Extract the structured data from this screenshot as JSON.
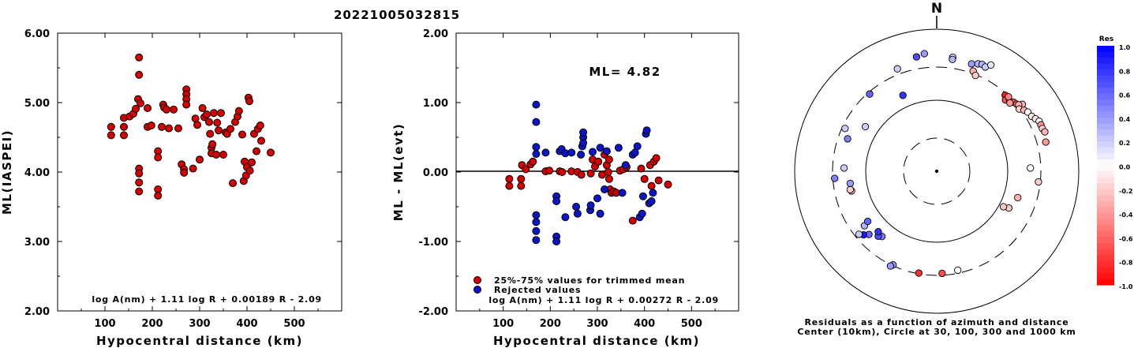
{
  "event_id": "20221005032815",
  "colors": {
    "accepted": "#d40000",
    "rejected": "#0a14c8"
  },
  "chart_data": [
    {
      "type": "scatter",
      "xlabel": "Hypocentral distance (km)",
      "ylabel": "ML(IASPEI)",
      "xlim": [
        0,
        600
      ],
      "ylim": [
        2.0,
        6.0
      ],
      "xticks": [
        "100",
        "200",
        "300",
        "400",
        "500"
      ],
      "yticks": [
        "2.00",
        "3.00",
        "4.00",
        "5.00",
        "6.00"
      ],
      "formula": "log A(nm) + 1.11 log R + 0.00189 R - 2.09",
      "points": [
        [
          113,
          4.65
        ],
        [
          113,
          4.53
        ],
        [
          140,
          4.78
        ],
        [
          140,
          4.65
        ],
        [
          140,
          4.53
        ],
        [
          152,
          4.8
        ],
        [
          160,
          4.84
        ],
        [
          165,
          4.91
        ],
        [
          170,
          5.05
        ],
        [
          172,
          5.65
        ],
        [
          172,
          5.4
        ],
        [
          175,
          4.99
        ],
        [
          172,
          4.05
        ],
        [
          172,
          3.98
        ],
        [
          172,
          3.85
        ],
        [
          172,
          3.72
        ],
        [
          190,
          4.92
        ],
        [
          190,
          4.65
        ],
        [
          198,
          4.67
        ],
        [
          212,
          4.3
        ],
        [
          212,
          4.21
        ],
        [
          212,
          3.75
        ],
        [
          212,
          3.66
        ],
        [
          220,
          4.65
        ],
        [
          223,
          4.97
        ],
        [
          225,
          4.93
        ],
        [
          230,
          4.9
        ],
        [
          235,
          4.63
        ],
        [
          245,
          4.9
        ],
        [
          255,
          4.63
        ],
        [
          262,
          4.11
        ],
        [
          267,
          4.04
        ],
        [
          267,
          3.99
        ],
        [
          272,
          5.19
        ],
        [
          272,
          5.12
        ],
        [
          272,
          5.05
        ],
        [
          272,
          4.97
        ],
        [
          286,
          4.05
        ],
        [
          291,
          4.77
        ],
        [
          295,
          4.68
        ],
        [
          300,
          4.18
        ],
        [
          306,
          4.92
        ],
        [
          310,
          4.79
        ],
        [
          315,
          4.83
        ],
        [
          320,
          4.72
        ],
        [
          322,
          4.55
        ],
        [
          325,
          4.35
        ],
        [
          325,
          4.27
        ],
        [
          327,
          4.4
        ],
        [
          330,
          4.85
        ],
        [
          335,
          4.25
        ],
        [
          337,
          4.71
        ],
        [
          340,
          4.6
        ],
        [
          345,
          4.85
        ],
        [
          350,
          4.25
        ],
        [
          355,
          4.57
        ],
        [
          358,
          4.55
        ],
        [
          365,
          4.62
        ],
        [
          370,
          3.84
        ],
        [
          375,
          4.72
        ],
        [
          380,
          4.8
        ],
        [
          383,
          4.88
        ],
        [
          390,
          4.54
        ],
        [
          395,
          4.15
        ],
        [
          393,
          3.87
        ],
        [
          398,
          3.95
        ],
        [
          400,
          4.07
        ],
        [
          403,
          5.07
        ],
        [
          405,
          5.02
        ],
        [
          406,
          4.02
        ],
        [
          410,
          4.14
        ],
        [
          415,
          4.55
        ],
        [
          420,
          4.3
        ],
        [
          423,
          4.62
        ],
        [
          428,
          4.67
        ],
        [
          430,
          4.45
        ],
        [
          450,
          4.28
        ]
      ]
    },
    {
      "type": "scatter",
      "xlabel": "Hypocentral distance (km)",
      "ylabel": "ML - ML(evt)",
      "xlim": [
        0,
        600
      ],
      "ylim": [
        -2.0,
        2.0
      ],
      "xticks": [
        "100",
        "200",
        "300",
        "400",
        "500"
      ],
      "yticks": [
        "-2.00",
        "-1.00",
        "0.00",
        "1.00",
        "2.00"
      ],
      "annotation": "ML= 4.82",
      "legend": [
        "25%-75% values for trimmed mean",
        "Rejected values"
      ],
      "formula": "log A(nm) + 1.11 log R + 0.00272 R - 2.09",
      "series": [
        {
          "name": "25%-75% values for trimmed mean",
          "points": [
            [
              113,
              -0.2
            ],
            [
              113,
              -0.1
            ],
            [
              138,
              -0.1
            ],
            [
              138,
              -0.2
            ],
            [
              140,
              0.1
            ],
            [
              148,
              0.04
            ],
            [
              158,
              0.11
            ],
            [
              163,
              0.15
            ],
            [
              190,
              0.01
            ],
            [
              198,
              0.02
            ],
            [
              220,
              0.01
            ],
            [
              225,
              0.0
            ],
            [
              245,
              0.01
            ],
            [
              258,
              0.0
            ],
            [
              266,
              -0.04
            ],
            [
              286,
              -0.02
            ],
            [
              290,
              0.18
            ],
            [
              295,
              0.08
            ],
            [
              302,
              0.15
            ],
            [
              310,
              -0.04
            ],
            [
              315,
              0.25
            ],
            [
              320,
              0.1
            ],
            [
              323,
              0.0
            ],
            [
              325,
              -0.1
            ],
            [
              325,
              0.18
            ],
            [
              327,
              -0.25
            ],
            [
              330,
              -0.3
            ],
            [
              335,
              -0.28
            ],
            [
              340,
              -0.3
            ],
            [
              348,
              0.02
            ],
            [
              355,
              0.04
            ],
            [
              362,
              0.07
            ],
            [
              375,
              -0.7
            ],
            [
              393,
              0.05
            ],
            [
              400,
              -0.1
            ],
            [
              412,
              0.1
            ],
            [
              415,
              -0.2
            ],
            [
              420,
              0.15
            ],
            [
              425,
              0.2
            ],
            [
              430,
              -0.12
            ],
            [
              450,
              -0.18
            ]
          ]
        },
        {
          "name": "Rejected values",
          "points": [
            [
              170,
              0.97
            ],
            [
              170,
              0.72
            ],
            [
              170,
              0.36
            ],
            [
              170,
              0.26
            ],
            [
              170,
              -0.62
            ],
            [
              170,
              -0.72
            ],
            [
              170,
              -0.85
            ],
            [
              170,
              -0.98
            ],
            [
              190,
              0.28
            ],
            [
              213,
              -0.35
            ],
            [
              213,
              -0.42
            ],
            [
              213,
              -0.93
            ],
            [
              213,
              -1.0
            ],
            [
              220,
              0.3
            ],
            [
              224,
              0.33
            ],
            [
              232,
              0.27
            ],
            [
              232,
              -0.65
            ],
            [
              245,
              0.28
            ],
            [
              255,
              -0.5
            ],
            [
              258,
              -0.6
            ],
            [
              265,
              0.25
            ],
            [
              268,
              0.37
            ],
            [
              270,
              0.5
            ],
            [
              270,
              0.42
            ],
            [
              270,
              0.57
            ],
            [
              285,
              -0.55
            ],
            [
              286,
              -0.48
            ],
            [
              290,
              0.29
            ],
            [
              300,
              -0.38
            ],
            [
              306,
              0.35
            ],
            [
              306,
              -0.6
            ],
            [
              315,
              -0.25
            ],
            [
              320,
              0.3
            ],
            [
              345,
              0.35
            ],
            [
              353,
              -0.3
            ],
            [
              360,
              0.1
            ],
            [
              375,
              0.25
            ],
            [
              380,
              0.28
            ],
            [
              385,
              0.37
            ],
            [
              390,
              -0.65
            ],
            [
              395,
              -0.6
            ],
            [
              397,
              -0.35
            ],
            [
              403,
              0.55
            ],
            [
              405,
              0.6
            ],
            [
              410,
              -0.45
            ],
            [
              415,
              -0.42
            ],
            [
              418,
              -0.3
            ]
          ]
        }
      ]
    },
    {
      "type": "polar-scatter",
      "north_label": "N",
      "caption_line1": "Residuals as a function of azimuth and distance",
      "caption_line2": "Center (10km), Circle at 30, 100, 300 and 1000 km",
      "colorbar_title": "Res",
      "colorbar_ticks": [
        "1.0",
        "0.8",
        "0.6",
        "0.4",
        "0.2",
        "0.0",
        "-0.2",
        "-0.4",
        "-0.6",
        "-0.8",
        "-1.0"
      ],
      "rings_km": [
        30,
        100,
        300,
        1000
      ],
      "points_az_dist_res": [
        [
          -6,
          1.11,
          0.4
        ],
        [
          8,
          1.08,
          0.1
        ],
        [
          8,
          1.06,
          0.3
        ],
        [
          18,
          1.06,
          0.4
        ],
        [
          21,
          1.08,
          0.3
        ],
        [
          23,
          1.09,
          0.3
        ],
        [
          25,
          1.08,
          0.2
        ],
        [
          27,
          1.12,
          0.1
        ],
        [
          20,
          1.0,
          -0.3
        ],
        [
          22,
          0.97,
          -0.2
        ],
        [
          42,
          0.96,
          -0.9
        ],
        [
          44,
          0.93,
          -0.7
        ],
        [
          46,
          0.95,
          -0.6
        ],
        [
          48,
          0.97,
          -0.7
        ],
        [
          50,
          0.98,
          -0.6
        ],
        [
          44,
          0.97,
          -0.5
        ],
        [
          47,
          0.94,
          -0.4
        ],
        [
          52,
          1.02,
          -0.3
        ],
        [
          51,
          0.99,
          -0.3
        ],
        [
          53,
          0.97,
          -0.2
        ],
        [
          55,
          1.0,
          -0.3
        ],
        [
          57,
          1.02,
          0.0
        ],
        [
          60,
          1.03,
          -0.1
        ],
        [
          62,
          1.05,
          -0.1
        ],
        [
          64,
          1.07,
          0.0
        ],
        [
          66,
          1.07,
          -0.4
        ],
        [
          68,
          1.07,
          -0.2
        ],
        [
          70,
          1.08,
          -0.3
        ],
        [
          75,
          1.06,
          -0.4
        ],
        [
          88,
          0.88,
          0.0
        ],
        [
          96,
          0.96,
          -0.2
        ],
        [
          108,
          0.8,
          -0.3
        ],
        [
          117,
          0.76,
          -0.2
        ],
        [
          118,
          0.71,
          -0.2
        ],
        [
          168,
          0.95,
          0.0
        ],
        [
          177,
          0.96,
          -0.7
        ],
        [
          190,
          0.97,
          -0.8
        ],
        [
          205,
          0.97,
          0.4
        ],
        [
          206,
          0.99,
          0.4
        ],
        [
          220,
          0.8,
          0.5
        ],
        [
          222,
          0.82,
          0.7
        ],
        [
          224,
          0.79,
          0.8
        ],
        [
          227,
          0.87,
          0.6
        ],
        [
          229,
          0.91,
          0.9
        ],
        [
          231,
          0.94,
          0.2
        ],
        [
          233,
          0.85,
          0.3
        ],
        [
          234,
          0.8,
          0.6
        ],
        [
          257,
          0.82,
          -0.3
        ],
        [
          258,
          0.83,
          -0.2
        ],
        [
          262,
          0.82,
          0.4
        ],
        [
          266,
          0.96,
          0.5
        ],
        [
          272,
          0.87,
          0.2
        ],
        [
          290,
          0.89,
          0.5
        ],
        [
          295,
          0.95,
          0.2
        ],
        [
          302,
          0.79,
          0.2
        ],
        [
          319,
          0.96,
          0.6
        ],
        [
          336,
          0.78,
          0.8
        ],
        [
          339,
          1.03,
          0.2
        ],
        [
          350,
          1.09,
          0.7
        ]
      ]
    }
  ]
}
